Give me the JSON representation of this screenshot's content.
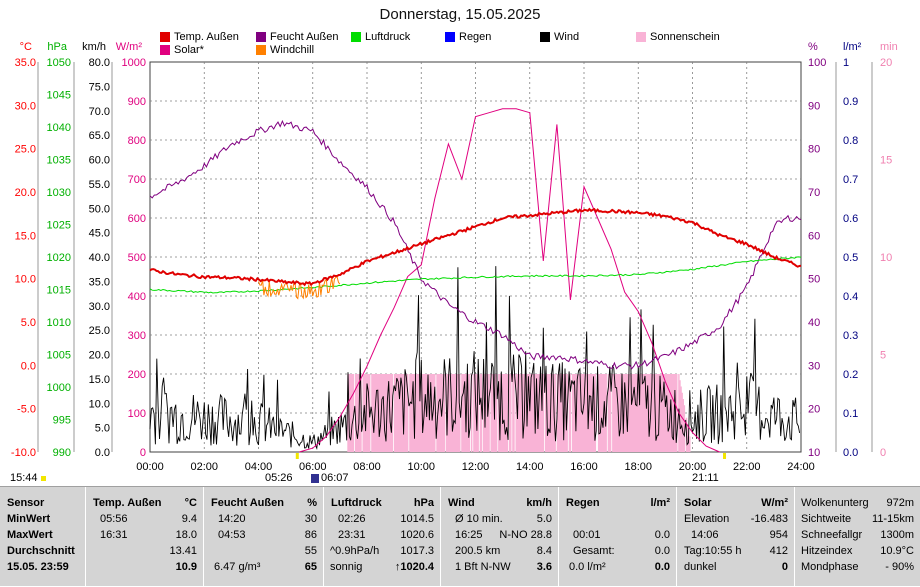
{
  "title": "Donnerstag, 15.05.2025",
  "legend": [
    {
      "label": "Temp. Außen",
      "color": "#e00000"
    },
    {
      "label": "Feucht Außen",
      "color": "#800080"
    },
    {
      "label": "Luftdruck",
      "color": "#00dd00"
    },
    {
      "label": "Regen",
      "color": "#0000ff"
    },
    {
      "label": "Wind",
      "color": "#000000"
    },
    {
      "label": "Sonnenschein",
      "color": "#f9b3d6"
    },
    {
      "label": "Solar*",
      "color": "#e0007f"
    },
    {
      "label": "Windchill",
      "color": "#ff8000"
    }
  ],
  "axes": {
    "temp": {
      "unit": "°C",
      "ticks": [
        "35.0",
        "30.0",
        "25.0",
        "20.0",
        "15.0",
        "10.0",
        "5.0",
        "0.0",
        "-5.0",
        "-10.0"
      ],
      "color": "#ff0000"
    },
    "press": {
      "unit": "hPa",
      "ticks": [
        "1050",
        "1045",
        "1040",
        "1035",
        "1030",
        "1025",
        "1020",
        "1015",
        "1010",
        "1005",
        "1000",
        "995",
        "990"
      ],
      "color": "#00b000"
    },
    "wind": {
      "unit": "km/h",
      "ticks": [
        "80.0",
        "75.0",
        "70.0",
        "65.0",
        "60.0",
        "55.0",
        "50.0",
        "45.0",
        "40.0",
        "35.0",
        "30.0",
        "25.0",
        "20.0",
        "15.0",
        "10.0",
        "5.0",
        "0.0"
      ],
      "color": "#000000"
    },
    "solar": {
      "unit": "W/m²",
      "ticks": [
        "1000",
        "900",
        "800",
        "700",
        "600",
        "500",
        "400",
        "300",
        "200",
        "100",
        "0"
      ],
      "color": "#e0007f"
    },
    "hum": {
      "unit": "%",
      "ticks": [
        "100",
        "90",
        "80",
        "70",
        "60",
        "50",
        "40",
        "30",
        "20",
        "10"
      ],
      "color": "#800080"
    },
    "rain": {
      "unit": "l/m²",
      "ticks": [
        "1",
        "0.9",
        "0.8",
        "0.7",
        "0.6",
        "0.5",
        "0.4",
        "0.3",
        "0.2",
        "0.1",
        "0.0"
      ],
      "color": "#000080"
    },
    "sun": {
      "unit": "min",
      "ticks": [
        "20",
        "15",
        "10",
        "5",
        "0"
      ],
      "color": "#f080b0"
    },
    "x": [
      "00:00",
      "02:00",
      "04:00",
      "06:00",
      "08:00",
      "10:00",
      "12:00",
      "14:00",
      "16:00",
      "18:00",
      "20:00",
      "22:00",
      "24:00"
    ]
  },
  "markers": {
    "left_time": "15:44",
    "sunrise": "05:26",
    "moon": "06:07",
    "sunset": "21:11"
  },
  "chart_data": {
    "type": "line",
    "title": "Donnerstag, 15.05.2025",
    "x_range": [
      0,
      24
    ],
    "series": [
      {
        "name": "Temp. Außen",
        "axis": "°C",
        "color": "#e00000",
        "x": [
          0,
          1,
          2,
          3,
          4,
          5,
          5.93,
          7,
          8,
          9,
          10,
          11,
          12,
          13,
          14,
          15,
          16,
          17,
          18,
          19,
          20,
          21,
          22,
          23,
          24
        ],
        "y": [
          11.0,
          10.5,
          10.2,
          10.1,
          9.9,
          9.6,
          9.4,
          10.5,
          12.0,
          13.0,
          14.0,
          15.0,
          16.0,
          17.0,
          17.3,
          17.6,
          17.9,
          17.8,
          17.6,
          17.2,
          16.5,
          15.0,
          14.0,
          12.5,
          11.4
        ]
      },
      {
        "name": "Feucht Außen",
        "axis": "%",
        "color": "#800080",
        "x": [
          0,
          1,
          2,
          3,
          4,
          4.88,
          6,
          7,
          8,
          9,
          10,
          11,
          12,
          13,
          14,
          15,
          16,
          17,
          18,
          19,
          20,
          21,
          22,
          23,
          23.5,
          24
        ],
        "y": [
          69,
          72,
          76,
          81,
          84,
          86,
          84,
          77,
          71,
          63,
          50,
          44,
          40,
          37,
          32,
          32,
          31,
          30,
          30,
          32,
          35,
          39,
          48,
          62,
          64,
          64
        ]
      },
      {
        "name": "Luftdruck",
        "axis": "hPa",
        "color": "#00dd00",
        "x": [
          0,
          2.43,
          4,
          6,
          8,
          10,
          12,
          14,
          16,
          18,
          20,
          22,
          24
        ],
        "y": [
          1015.0,
          1014.5,
          1014.8,
          1015.3,
          1016.0,
          1016.6,
          1016.9,
          1017.1,
          1017.1,
          1017.3,
          1018.1,
          1019.3,
          1020.0
        ]
      },
      {
        "name": "Solar*",
        "axis": "W/m²",
        "color": "#e0007f",
        "x": [
          5.5,
          6,
          6.5,
          7,
          7.5,
          8,
          8.5,
          9,
          9.5,
          10,
          10.5,
          11,
          11.5,
          12,
          12.5,
          13,
          13.5,
          14,
          14.5,
          15,
          15.5,
          16,
          16.5,
          17,
          17.5,
          18,
          18.5,
          19,
          19.5,
          20,
          20.5,
          21
        ],
        "y": [
          0,
          10,
          40,
          90,
          150,
          220,
          300,
          370,
          450,
          480,
          650,
          790,
          700,
          860,
          870,
          880,
          880,
          870,
          490,
          840,
          390,
          680,
          600,
          520,
          410,
          360,
          280,
          180,
          100,
          50,
          15,
          0
        ]
      },
      {
        "name": "Wind",
        "axis": "km/h",
        "x": [
          0,
          2,
          4,
          6,
          8,
          10,
          12,
          14,
          16,
          18,
          20,
          22,
          24
        ],
        "y": [
          8,
          7,
          6,
          2,
          8,
          11,
          12,
          11,
          10,
          10,
          7,
          9,
          6
        ]
      },
      {
        "name": "Sonnenschein",
        "axis": "min",
        "x": [
          7.3,
          8,
          10,
          12,
          14,
          16,
          18,
          19.5,
          20
        ],
        "y": [
          4,
          4,
          4,
          4,
          4,
          4,
          4,
          4,
          0
        ]
      }
    ]
  },
  "panel": {
    "sensor": {
      "h": "Sensor",
      "min": "MinWert",
      "max": "MaxWert",
      "avg": "Durchschnitt",
      "date": "15.05. 23:59"
    },
    "temp": {
      "h": "Temp. Außen",
      "unit": "°C",
      "min_t": "05:56",
      "min_v": "9.4",
      "max_t": "16:31",
      "max_v": "18.0",
      "avg": "13.41",
      "cur": "10.9"
    },
    "hum": {
      "h": "Feucht Außen",
      "unit": "%",
      "min_t": "14:20",
      "min_v": "30",
      "max_t": "04:53",
      "max_v": "86",
      "avg": "55",
      "extra": "6.47 g/m³",
      "cur": "65"
    },
    "press": {
      "h": "Luftdruck",
      "unit": "hPa",
      "min_t": "02:26",
      "min_v": "1014.5",
      "max_t": "23:31",
      "max_v": "1020.6",
      "trend": "^0.9hPa/h",
      "avg": "1017.3",
      "wx": "sonnig",
      "cur": "↑1020.4"
    },
    "wind": {
      "h": "Wind",
      "unit": "km/h",
      "r1a": "Ø 10 min.",
      "r1b": "5.0",
      "r2a": "16:25",
      "r2b": "N-NO 28.8",
      "r3a": "200.5 km",
      "r3b": "8.4",
      "r4a": "1 Bft N-NW",
      "r4b": "3.6"
    },
    "rain": {
      "h": "Regen",
      "unit": "l/m²",
      "r1": "0.0",
      "r2a": "00:01",
      "r2b": "0.0",
      "r3a": "Gesamt:",
      "r3b": "0.0",
      "r4a": "0.0 l/m²",
      "r4b": "0.0"
    },
    "solar": {
      "h": "Solar",
      "unit": "W/m²",
      "r1a": "Elevation",
      "r1b": "-16.483",
      "r2a": "14:06",
      "r2b": "954",
      "r3a": "Tag:10:55 h",
      "r3b": "412",
      "r4a": "dunkel",
      "r4b": "0"
    },
    "extra": {
      "r0a": "Wolkenunterg",
      "r0b": "972m",
      "r1a": "Sichtweite",
      "r1b": "11-15km",
      "r2a": "Schneefallgr",
      "r2b": "1300m",
      "r3a": "Hitzeindex",
      "r3b": "10.9°C",
      "r4a": "Mondphase",
      "r4b": "- 90%"
    }
  }
}
